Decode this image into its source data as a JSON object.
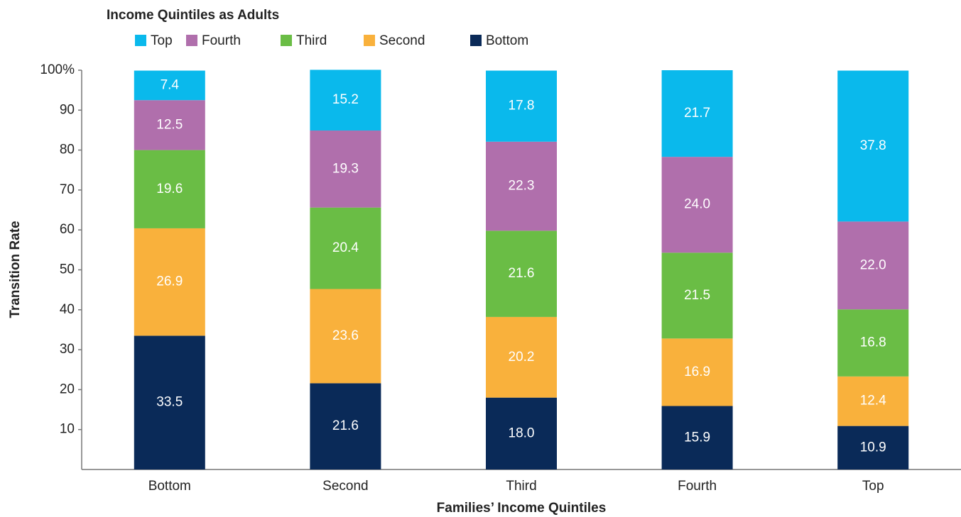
{
  "chart_data": {
    "type": "stacked_bar",
    "legend_title": "Income Quintiles as Adults",
    "x_label": "Families’ Income Quintiles",
    "y_label": "Transition Rate",
    "categories": [
      "Bottom",
      "Second",
      "Third",
      "Fourth",
      "Top"
    ],
    "series": [
      {
        "name": "Bottom",
        "color": "#0a2a58",
        "values": [
          33.5,
          21.6,
          18.0,
          15.9,
          10.9
        ],
        "value_labels": [
          "33.5",
          "21.6",
          "18.0",
          "15.9",
          "10.9"
        ]
      },
      {
        "name": "Second",
        "color": "#f9b13c",
        "values": [
          26.9,
          23.6,
          20.2,
          16.9,
          12.4
        ],
        "value_labels": [
          "26.9",
          "23.6",
          "20.2",
          "16.9",
          "12.4"
        ]
      },
      {
        "name": "Third",
        "color": "#6abd45",
        "values": [
          19.6,
          20.4,
          21.6,
          21.5,
          16.8
        ],
        "value_labels": [
          "19.6",
          "20.4",
          "21.6",
          "21.5",
          "16.8"
        ]
      },
      {
        "name": "Fourth",
        "color": "#b06fac",
        "values": [
          12.5,
          19.3,
          22.3,
          24.0,
          22.0
        ],
        "value_labels": [
          "12.5",
          "19.3",
          "22.3",
          "24.0",
          "22.0"
        ]
      },
      {
        "name": "Top",
        "color": "#0ab9ec",
        "values": [
          7.4,
          15.2,
          17.8,
          21.7,
          37.8
        ],
        "value_labels": [
          "7.4",
          "15.2",
          "17.8",
          "21.7",
          "37.8"
        ]
      }
    ],
    "ylim": [
      0,
      100
    ],
    "yticks": [
      10,
      20,
      30,
      40,
      50,
      60,
      70,
      80,
      90,
      {
        "value": 100,
        "label": "100%"
      }
    ]
  }
}
